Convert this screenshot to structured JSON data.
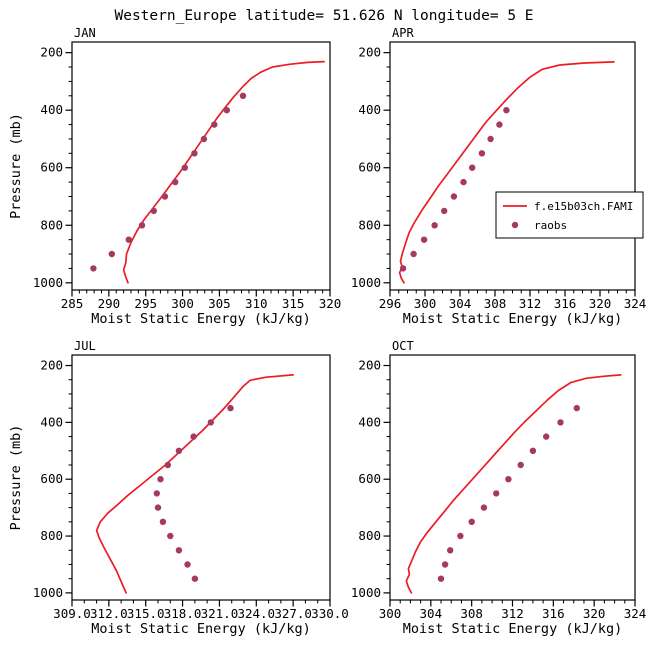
{
  "page": {
    "title": "Western_Europe  latitude= 51.626 N  longitude= 5 E"
  },
  "legend": {
    "entries": [
      {
        "label": "f.e15b03ch.FAMI",
        "marker": "line",
        "color": "#ed1c24"
      },
      {
        "label": "raobs",
        "marker": "dot",
        "color": "#a53a60"
      }
    ]
  },
  "chart_data": [
    {
      "type": "line",
      "title": "JAN",
      "xlabel": "Moist Static Energy (kJ/kg)",
      "ylabel": "Pressure (mb)",
      "xlim": [
        285,
        320
      ],
      "xticks": [
        285,
        290,
        295,
        300,
        305,
        310,
        315,
        320
      ],
      "xtick_labels": [
        "285",
        "290",
        "295",
        "300",
        "305",
        "310",
        "315",
        "320"
      ],
      "x_minor_step": 1,
      "ylim": [
        163,
        1025
      ],
      "y_axis_reversed": true,
      "yticks": [
        200,
        400,
        600,
        800,
        1000
      ],
      "y_minor_step": 50,
      "series": [
        {
          "name": "f.e15b03ch.FAMI",
          "type": "line",
          "color": "#ed1c24",
          "points": [
            [
              292.6,
              1000
            ],
            [
              292.3,
              980
            ],
            [
              292.0,
              955
            ],
            [
              292.3,
              930
            ],
            [
              292.4,
              900
            ],
            [
              293.0,
              860
            ],
            [
              293.8,
              820
            ],
            [
              294.8,
              780
            ],
            [
              296.0,
              740
            ],
            [
              297.2,
              700
            ],
            [
              298.5,
              655
            ],
            [
              299.8,
              610
            ],
            [
              301.0,
              565
            ],
            [
              302.2,
              520
            ],
            [
              303.4,
              475
            ],
            [
              304.6,
              430
            ],
            [
              305.8,
              390
            ],
            [
              306.9,
              355
            ],
            [
              308.1,
              320
            ],
            [
              309.3,
              290
            ],
            [
              310.6,
              268
            ],
            [
              312.2,
              250
            ],
            [
              314.6,
              240
            ],
            [
              317.0,
              234
            ],
            [
              319.2,
              231
            ]
          ]
        },
        {
          "name": "raobs",
          "type": "scatter",
          "color": "#a53a60",
          "points": [
            [
              287.9,
              950
            ],
            [
              290.4,
              900
            ],
            [
              292.7,
              850
            ],
            [
              294.5,
              800
            ],
            [
              296.1,
              750
            ],
            [
              297.6,
              700
            ],
            [
              299.0,
              650
            ],
            [
              300.3,
              600
            ],
            [
              301.6,
              550
            ],
            [
              302.9,
              500
            ],
            [
              304.3,
              450
            ],
            [
              306.0,
              400
            ],
            [
              308.2,
              350
            ]
          ]
        }
      ]
    },
    {
      "type": "line",
      "title": "APR",
      "xlabel": "Moist Static Energy (kJ/kg)",
      "ylabel": "",
      "xlim": [
        296,
        324
      ],
      "xticks": [
        296,
        300,
        304,
        308,
        312,
        316,
        320,
        324
      ],
      "xtick_labels": [
        "296",
        "300",
        "304",
        "308",
        "312",
        "316",
        "320",
        "324"
      ],
      "x_minor_step": 1,
      "ylim": [
        163,
        1025
      ],
      "y_axis_reversed": true,
      "yticks": [
        200,
        400,
        600,
        800,
        1000
      ],
      "y_minor_step": 50,
      "series": [
        {
          "name": "f.e15b03ch.FAMI",
          "type": "line",
          "color": "#ed1c24",
          "points": [
            [
              297.6,
              1000
            ],
            [
              297.3,
              985
            ],
            [
              297.1,
              965
            ],
            [
              297.4,
              945
            ],
            [
              297.2,
              925
            ],
            [
              297.4,
              900
            ],
            [
              297.8,
              860
            ],
            [
              298.2,
              825
            ],
            [
              298.8,
              790
            ],
            [
              299.6,
              750
            ],
            [
              300.5,
              710
            ],
            [
              301.5,
              665
            ],
            [
              302.6,
              620
            ],
            [
              303.7,
              575
            ],
            [
              304.8,
              530
            ],
            [
              305.9,
              485
            ],
            [
              307.0,
              440
            ],
            [
              308.2,
              400
            ],
            [
              309.4,
              360
            ],
            [
              310.7,
              320
            ],
            [
              312.0,
              285
            ],
            [
              313.4,
              258
            ],
            [
              315.4,
              243
            ],
            [
              318.2,
              236
            ],
            [
              321.6,
              232
            ]
          ]
        },
        {
          "name": "raobs",
          "type": "scatter",
          "color": "#a53a60",
          "points": [
            [
              297.5,
              950
            ],
            [
              298.7,
              900
            ],
            [
              299.9,
              850
            ],
            [
              301.1,
              800
            ],
            [
              302.2,
              750
            ],
            [
              303.3,
              700
            ],
            [
              304.4,
              650
            ],
            [
              305.4,
              600
            ],
            [
              306.5,
              550
            ],
            [
              307.5,
              500
            ],
            [
              308.5,
              450
            ],
            [
              309.3,
              400
            ]
          ]
        }
      ]
    },
    {
      "type": "line",
      "title": "JUL",
      "xlabel": "Moist Static Energy (kJ/kg)",
      "ylabel": "Pressure (mb)",
      "xlim": [
        309,
        330
      ],
      "xticks": [
        309,
        312,
        315,
        318,
        321,
        324,
        327,
        330
      ],
      "xtick_labels": [
        "309.0",
        "312.0",
        "315.0",
        "318.0",
        "321.0",
        "324.0",
        "327.0",
        "330.0"
      ],
      "x_minor_step": 1,
      "ylim": [
        163,
        1025
      ],
      "y_axis_reversed": true,
      "yticks": [
        200,
        400,
        600,
        800,
        1000
      ],
      "y_minor_step": 50,
      "series": [
        {
          "name": "f.e15b03ch.FAMI",
          "type": "line",
          "color": "#ed1c24",
          "points": [
            [
              313.4,
              1000
            ],
            [
              313.0,
              960
            ],
            [
              312.6,
              920
            ],
            [
              312.1,
              880
            ],
            [
              311.6,
              840
            ],
            [
              311.2,
              805
            ],
            [
              311.0,
              780
            ],
            [
              311.3,
              750
            ],
            [
              311.9,
              720
            ],
            [
              312.7,
              690
            ],
            [
              313.6,
              655
            ],
            [
              314.6,
              620
            ],
            [
              315.6,
              585
            ],
            [
              316.6,
              550
            ],
            [
              317.6,
              510
            ],
            [
              318.6,
              470
            ],
            [
              319.6,
              430
            ],
            [
              320.5,
              390
            ],
            [
              321.4,
              350
            ],
            [
              322.2,
              310
            ],
            [
              322.9,
              275
            ],
            [
              323.5,
              252
            ],
            [
              324.8,
              241
            ],
            [
              327.0,
              233
            ]
          ]
        },
        {
          "name": "raobs",
          "type": "scatter",
          "color": "#a53a60",
          "points": [
            [
              319.0,
              950
            ],
            [
              318.4,
              900
            ],
            [
              317.7,
              850
            ],
            [
              317.0,
              800
            ],
            [
              316.4,
              750
            ],
            [
              316.0,
              700
            ],
            [
              315.9,
              650
            ],
            [
              316.2,
              600
            ],
            [
              316.8,
              550
            ],
            [
              317.7,
              500
            ],
            [
              318.9,
              450
            ],
            [
              320.3,
              400
            ],
            [
              321.9,
              350
            ]
          ]
        }
      ]
    },
    {
      "type": "line",
      "title": "OCT",
      "xlabel": "Moist Static Energy (kJ/kg)",
      "ylabel": "",
      "xlim": [
        300,
        324
      ],
      "xticks": [
        300,
        304,
        308,
        312,
        316,
        320,
        324
      ],
      "xtick_labels": [
        "300",
        "304",
        "308",
        "312",
        "316",
        "320",
        "324"
      ],
      "x_minor_step": 1,
      "ylim": [
        163,
        1025
      ],
      "y_axis_reversed": true,
      "yticks": [
        200,
        400,
        600,
        800,
        1000
      ],
      "y_minor_step": 50,
      "series": [
        {
          "name": "f.e15b03ch.FAMI",
          "type": "line",
          "color": "#ed1c24",
          "points": [
            [
              302.1,
              1000
            ],
            [
              301.8,
              980
            ],
            [
              301.6,
              958
            ],
            [
              301.9,
              935
            ],
            [
              301.8,
              915
            ],
            [
              302.1,
              890
            ],
            [
              302.5,
              855
            ],
            [
              303.0,
              820
            ],
            [
              303.7,
              785
            ],
            [
              304.5,
              750
            ],
            [
              305.3,
              715
            ],
            [
              306.2,
              675
            ],
            [
              307.2,
              635
            ],
            [
              308.2,
              595
            ],
            [
              309.2,
              555
            ],
            [
              310.2,
              515
            ],
            [
              311.2,
              475
            ],
            [
              312.2,
              435
            ],
            [
              313.2,
              398
            ],
            [
              314.3,
              360
            ],
            [
              315.4,
              322
            ],
            [
              316.5,
              288
            ],
            [
              317.7,
              260
            ],
            [
              319.2,
              245
            ],
            [
              320.9,
              238
            ],
            [
              322.6,
              233
            ]
          ]
        },
        {
          "name": "raobs",
          "type": "scatter",
          "color": "#a53a60",
          "points": [
            [
              305.0,
              950
            ],
            [
              305.4,
              900
            ],
            [
              305.9,
              850
            ],
            [
              306.9,
              800
            ],
            [
              308.0,
              750
            ],
            [
              309.2,
              700
            ],
            [
              310.4,
              650
            ],
            [
              311.6,
              600
            ],
            [
              312.8,
              550
            ],
            [
              314.0,
              500
            ],
            [
              315.3,
              450
            ],
            [
              316.7,
              400
            ],
            [
              318.3,
              350
            ]
          ]
        }
      ]
    }
  ]
}
